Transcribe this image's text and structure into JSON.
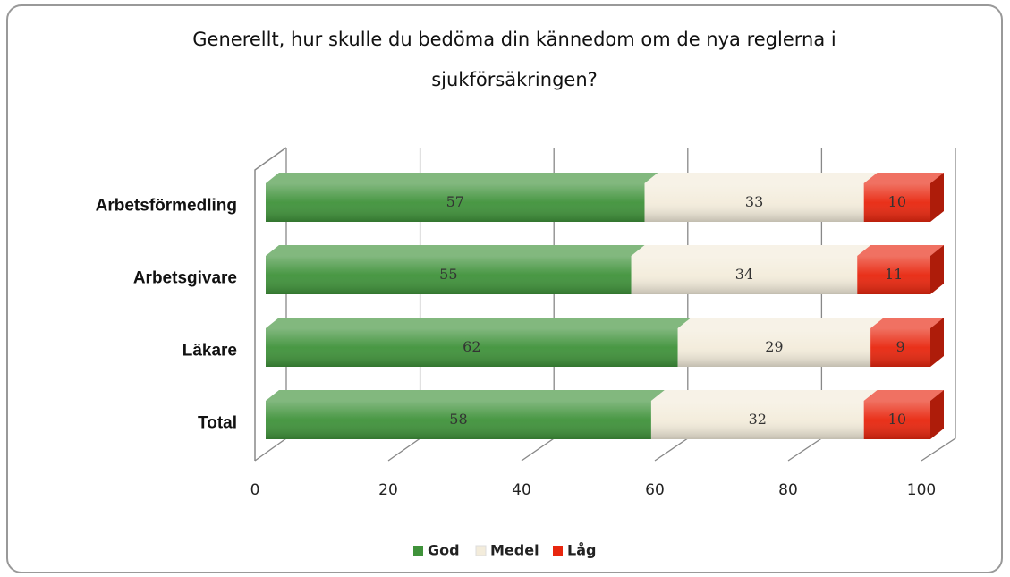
{
  "chart_data": {
    "type": "bar",
    "horizontal": true,
    "stacked": true,
    "title": "Generellt, hur skulle du bedöma din kännedom om de nya reglerna i sjukförsäkringen?",
    "categories": [
      "Arbetsförmedling",
      "Arbetsgivare",
      "Läkare",
      "Total"
    ],
    "series": [
      {
        "name": "God",
        "color": "#3f923a",
        "values": [
          57,
          55,
          62,
          58
        ]
      },
      {
        "name": "Medel",
        "color": "#f3ecdb",
        "values": [
          33,
          34,
          29,
          32
        ]
      },
      {
        "name": "Låg",
        "color": "#e8260e",
        "values": [
          10,
          11,
          9,
          10
        ]
      }
    ],
    "xlim": [
      0,
      100
    ],
    "xticks": [
      0,
      20,
      40,
      60,
      80,
      100
    ],
    "grid": true,
    "legend": "bottom"
  }
}
